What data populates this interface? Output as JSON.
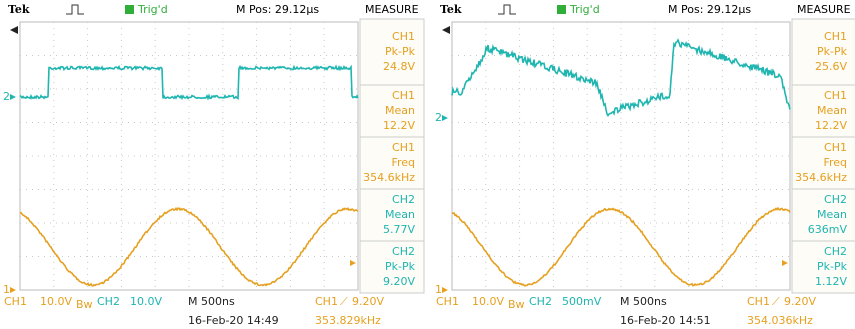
{
  "screens": [
    {
      "header": {
        "brand": "Tek",
        "trigger_status": "Trig'd",
        "position": "M Pos: 29.12µs",
        "menu": "MEASURE"
      },
      "markers": {
        "ch2": "2",
        "ch1": "1"
      },
      "measurements": [
        {
          "channel": "CH1",
          "label": "Pk-Pk",
          "value": "24.8V"
        },
        {
          "channel": "CH1",
          "label": "Mean",
          "value": "12.2V"
        },
        {
          "channel": "CH1",
          "label": "Freq",
          "value": "354.6kHz"
        },
        {
          "channel": "CH2",
          "label": "Mean",
          "value": "5.77V"
        },
        {
          "channel": "CH2",
          "label": "Pk-Pk",
          "value": "9.20V"
        }
      ],
      "footer": {
        "ch1": "CH1",
        "ch1_scale": "10.0V",
        "ch1_bw": "Bw",
        "ch2": "CH2",
        "ch2_scale": "10.0V",
        "timebase": "M 500ns",
        "trigger_source": "CH1",
        "trigger_slope": "⟋",
        "trigger_level": "9.20V",
        "timestamp": "16-Feb-20 14:49",
        "frequency": "353.829kHz"
      }
    },
    {
      "header": {
        "brand": "Tek",
        "trigger_status": "Trig'd",
        "position": "M Pos: 29.12µs",
        "menu": "MEASURE"
      },
      "markers": {
        "ch2": "2",
        "ch1": "1"
      },
      "measurements": [
        {
          "channel": "CH1",
          "label": "Pk-Pk",
          "value": "25.6V"
        },
        {
          "channel": "CH1",
          "label": "Mean",
          "value": "12.2V"
        },
        {
          "channel": "CH1",
          "label": "Freq",
          "value": "354.6kHz"
        },
        {
          "channel": "CH2",
          "label": "Mean",
          "value": "636mV"
        },
        {
          "channel": "CH2",
          "label": "Pk-Pk",
          "value": "1.12V"
        }
      ],
      "footer": {
        "ch1": "CH1",
        "ch1_scale": "10.0V",
        "ch1_bw": "Bw",
        "ch2": "CH2",
        "ch2_scale": "500mV",
        "timebase": "M 500ns",
        "trigger_source": "CH1",
        "trigger_slope": "⟋",
        "trigger_level": "9.20V",
        "timestamp": "16-Feb-20 14:51",
        "frequency": "354.036kHz"
      }
    }
  ]
}
